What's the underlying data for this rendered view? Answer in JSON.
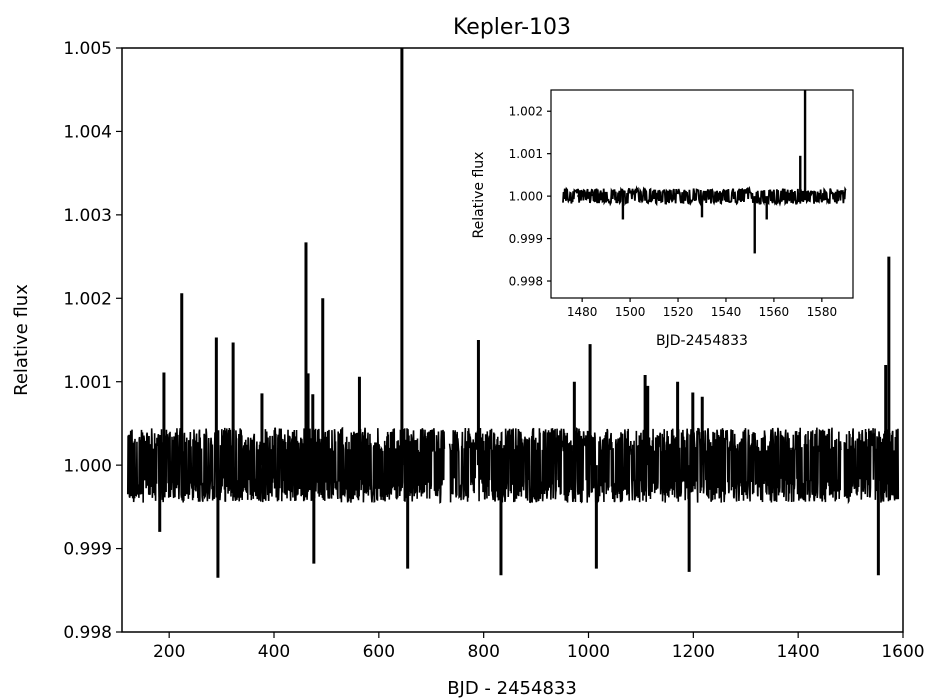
{
  "chart_data": [
    {
      "type": "line",
      "title": "Kepler-103",
      "xlabel": "BJD - 2454833",
      "ylabel": "Relative flux",
      "xlim": [
        110,
        1600
      ],
      "ylim": [
        0.998,
        1.005
      ],
      "xticks": [
        200,
        400,
        600,
        800,
        1000,
        1200,
        1400,
        1600
      ],
      "xtick_labels": [
        "200",
        "400",
        "600",
        "800",
        "1000",
        "1200",
        "1400",
        "1600"
      ],
      "yticks": [
        0.998,
        0.999,
        1.0,
        1.001,
        1.002,
        1.003,
        1.004,
        1.005
      ],
      "ytick_labels": [
        "0.998",
        "0.999",
        "1.000",
        "1.001",
        "1.002",
        "1.003",
        "1.004",
        "1.005"
      ],
      "grid": false,
      "line_color": "#000000",
      "series": [
        {
          "baseline": 1.0,
          "noise_amplitude": 0.00045,
          "segments": [
            [
              121,
              725
            ],
            [
              735,
              1482
            ],
            [
              1488,
              1591
            ]
          ],
          "spikes_up": [
            [
              190,
              1.00111
            ],
            [
              224,
              1.00206
            ],
            [
              290,
              1.00153
            ],
            [
              322,
              1.00147
            ],
            [
              377,
              1.00086
            ],
            [
              461,
              1.00267
            ],
            [
              465,
              1.0011
            ],
            [
              474,
              1.00085
            ],
            [
              493,
              1.002
            ],
            [
              563,
              1.00106
            ],
            [
              644,
              1.005
            ],
            [
              790,
              1.0015
            ],
            [
              973,
              1.001
            ],
            [
              1003,
              1.00145
            ],
            [
              1108,
              1.00108
            ],
            [
              1113,
              1.00095
            ],
            [
              1170,
              1.001
            ],
            [
              1199,
              1.00087
            ],
            [
              1217,
              1.00082
            ],
            [
              1567,
              1.0012
            ],
            [
              1573,
              1.0025
            ]
          ],
          "spikes_down": [
            [
              182,
              0.9992
            ],
            [
              293,
              0.99865
            ],
            [
              476,
              0.99882
            ],
            [
              655,
              0.99876
            ],
            [
              833,
              0.99868
            ],
            [
              1015,
              0.99876
            ],
            [
              1192,
              0.99872
            ],
            [
              1553,
              0.99868
            ]
          ]
        }
      ]
    },
    {
      "type": "line",
      "title": "",
      "xlabel": "BJD-2454833",
      "ylabel": "Relative flux",
      "xlim": [
        1467,
        1593
      ],
      "ylim": [
        0.9976,
        1.0025
      ],
      "xticks": [
        1480,
        1500,
        1520,
        1540,
        1560,
        1580
      ],
      "xtick_labels": [
        "1480",
        "1500",
        "1520",
        "1540",
        "1560",
        "1580"
      ],
      "yticks": [
        0.998,
        0.999,
        1.0,
        1.001,
        1.002
      ],
      "ytick_labels": [
        "0.998",
        "0.999",
        "1.000",
        "1.001",
        "1.002"
      ],
      "grid": false,
      "line_color": "#000000",
      "series": [
        {
          "baseline": 1.0,
          "noise_amplitude": 0.00018,
          "segments": [
            [
              1472,
              1590
            ]
          ],
          "spikes_up": [
            [
              1571,
              1.00095
            ],
            [
              1573,
              1.0025
            ]
          ],
          "spikes_down": [
            [
              1497,
              0.99945
            ],
            [
              1530,
              0.9995
            ],
            [
              1552,
              0.99865
            ],
            [
              1557,
              0.99945
            ]
          ]
        }
      ]
    }
  ]
}
